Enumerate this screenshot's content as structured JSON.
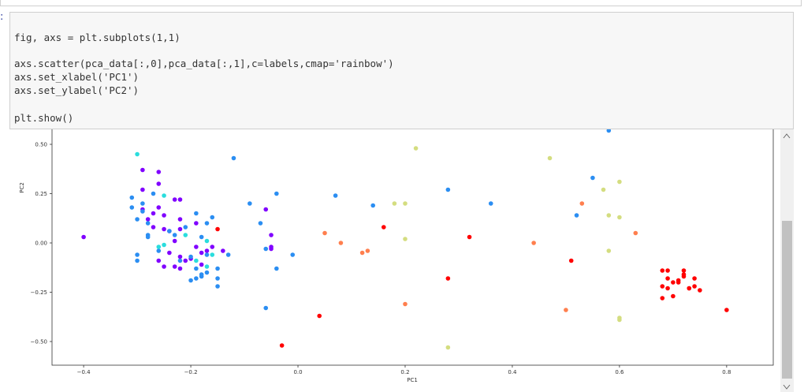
{
  "code": {
    "lines": [
      "fig, axs = plt.subplots(1,1)",
      "axs.scatter(pca_data[:,0],pca_data[:,1],c=labels,cmap='rainbow')",
      "axs.set_xlabel('PC1')",
      "axs.set_ylabel('PC2')",
      "plt.show()"
    ]
  },
  "chart_data": {
    "type": "scatter",
    "xlabel": "PC1",
    "ylabel": "PC2",
    "xlim": [
      -0.459,
      0.887
    ],
    "ylim": [
      -0.62,
      0.6
    ],
    "xticks": [
      {
        "value": -0.4,
        "label": "−0.4"
      },
      {
        "value": -0.2,
        "label": "−0.2"
      },
      {
        "value": 0,
        "label": "0.0"
      },
      {
        "value": 0.2,
        "label": "0.2"
      },
      {
        "value": 0.4,
        "label": "0.4"
      },
      {
        "value": 0.6,
        "label": "0.6"
      },
      {
        "value": 0.8,
        "label": "0.8"
      }
    ],
    "yticks": [
      {
        "value": 0.5,
        "label": "0.50"
      },
      {
        "value": 0.25,
        "label": "0.25"
      },
      {
        "value": 0,
        "label": "0.00"
      },
      {
        "value": -0.25,
        "label": "−0.25"
      },
      {
        "value": -0.5,
        "label": "−0.50"
      }
    ],
    "series": [
      {
        "color": "#8000ff",
        "x": [
          -0.4,
          -0.29,
          -0.26,
          -0.26,
          -0.22,
          -0.23,
          -0.29,
          -0.26,
          -0.29,
          -0.27,
          -0.28,
          -0.25,
          -0.27,
          -0.25,
          -0.22,
          -0.22,
          -0.19,
          -0.24,
          -0.23,
          -0.24,
          -0.22,
          -0.21,
          -0.2,
          -0.18,
          -0.16,
          -0.14,
          -0.26,
          -0.25,
          -0.23,
          -0.22,
          -0.18,
          -0.17,
          -0.05,
          -0.05,
          -0.05,
          -0.06,
          -0.19
        ],
        "values": [
          0.03,
          0.37,
          0.36,
          0.3,
          0.22,
          0.22,
          0.27,
          0.18,
          0.17,
          0.15,
          0.12,
          0.14,
          0.08,
          0.07,
          0.12,
          0.07,
          0.1,
          0.06,
          0.01,
          -0.05,
          -0.07,
          -0.09,
          -0.08,
          -0.05,
          -0.02,
          -0.04,
          -0.09,
          -0.12,
          -0.12,
          -0.13,
          -0.11,
          -0.04,
          0.04,
          -0.03,
          -0.02,
          0.17,
          -0.02
        ]
      },
      {
        "color": "#2b8ef2",
        "x": [
          0.58,
          0.55,
          0.28,
          0.36,
          0.14,
          0.07,
          0.52,
          -0.12,
          -0.04,
          -0.09,
          -0.07,
          -0.01,
          -0.04,
          -0.06,
          -0.06,
          -0.31,
          -0.31,
          -0.29,
          -0.29,
          -0.27,
          -0.3,
          -0.28,
          -0.28,
          -0.28,
          -0.3,
          -0.3,
          -0.26,
          -0.24,
          -0.23,
          -0.21,
          -0.19,
          -0.17,
          -0.16,
          -0.18,
          -0.19,
          -0.19,
          -0.18,
          -0.18,
          -0.17,
          -0.15,
          -0.15,
          -0.15,
          -0.13,
          -0.2,
          -0.17,
          -0.2,
          -0.22
        ],
        "values": [
          0.57,
          0.33,
          0.27,
          0.2,
          0.19,
          0.24,
          0.14,
          0.43,
          0.25,
          0.2,
          0.1,
          -0.06,
          -0.13,
          -0.33,
          -0.03,
          0.23,
          0.18,
          0.16,
          0.2,
          0.25,
          0.12,
          0.1,
          0.04,
          0.03,
          -0.06,
          -0.09,
          -0.04,
          0.06,
          0.04,
          0.08,
          0.15,
          0.1,
          0.13,
          0.03,
          -0.13,
          -0.18,
          -0.16,
          -0.17,
          -0.15,
          -0.13,
          -0.18,
          -0.22,
          -0.06,
          -0.19,
          -0.06,
          -0.07,
          -0.09
        ]
      },
      {
        "color": "#2adddd",
        "x": [
          -0.3,
          -0.25,
          -0.25,
          -0.26,
          -0.21,
          -0.17,
          -0.16,
          -0.17,
          -0.19
        ],
        "values": [
          0.45,
          0.24,
          -0.01,
          -0.02,
          0.04,
          0.01,
          -0.06,
          -0.12,
          -0.09
        ]
      },
      {
        "color": "#d4dd80",
        "x": [
          0.22,
          0.18,
          0.2,
          0.2,
          0.28,
          0.47,
          0.6,
          0.57,
          0.58,
          0.6,
          0.58,
          0.6,
          0.6
        ],
        "values": [
          0.48,
          0.2,
          0.2,
          0.02,
          -0.53,
          0.43,
          0.31,
          0.27,
          0.14,
          0.13,
          -0.04,
          -0.38,
          -0.39
        ]
      },
      {
        "color": "#ff7f4e",
        "x": [
          0.05,
          0.08,
          0.12,
          0.13,
          0.2,
          0.44,
          0.5,
          0.53,
          0.63
        ],
        "values": [
          0.05,
          0,
          -0.05,
          -0.04,
          -0.31,
          0,
          -0.34,
          0.2,
          0.05
        ]
      },
      {
        "color": "#ff0000",
        "x": [
          0.16,
          0.32,
          0.28,
          0.51,
          0.04,
          -0.03,
          0.8,
          -0.15,
          0.68,
          0.69,
          0.69,
          0.7,
          0.71,
          0.71,
          0.72,
          0.72,
          0.72,
          0.74,
          0.73,
          0.74,
          0.75,
          0.68,
          0.69,
          0.68,
          0.7,
          0.73
        ],
        "values": [
          0.08,
          0.03,
          -0.18,
          -0.09,
          -0.37,
          -0.52,
          -0.34,
          0.07,
          -0.14,
          -0.14,
          -0.18,
          -0.2,
          -0.2,
          -0.19,
          -0.14,
          -0.16,
          -0.17,
          -0.18,
          -0.23,
          -0.22,
          -0.24,
          -0.22,
          -0.23,
          -0.28,
          -0.27,
          -0.23
        ]
      }
    ]
  }
}
